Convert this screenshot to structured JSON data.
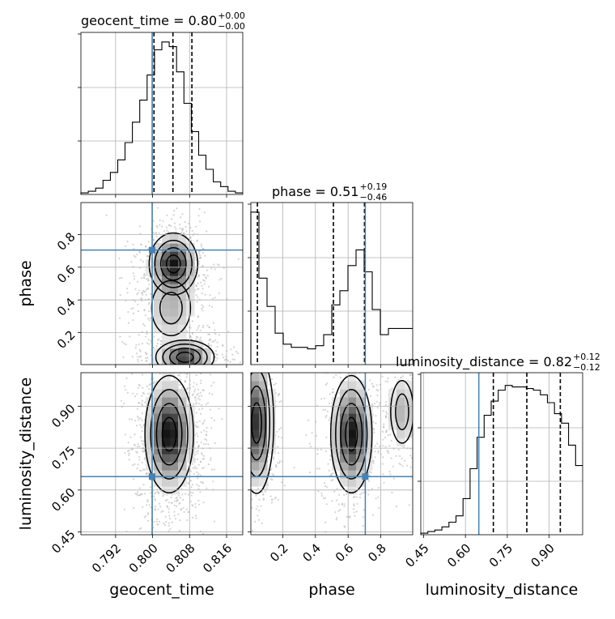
{
  "chart_data": {
    "type": "corner",
    "parameters": [
      "geocent_time",
      "phase",
      "luminosity_distance"
    ],
    "axis_labels": [
      "geocent_time",
      "phase",
      "luminosity_distance"
    ],
    "ranges": [
      [
        0.7845,
        0.8195
      ],
      [
        0.005,
        0.995
      ],
      [
        0.44,
        1.02
      ]
    ],
    "ticks": {
      "geocent_time": [
        0.792,
        0.8,
        0.808,
        0.816
      ],
      "phase": [
        0.2,
        0.4,
        0.6,
        0.8
      ],
      "luminosity_distance": [
        0.45,
        0.6,
        0.75,
        0.9
      ]
    },
    "tick_labels": {
      "geocent_time": [
        "0.792",
        "0.800",
        "0.808",
        "0.816"
      ],
      "phase": [
        "0.2",
        "0.4",
        "0.6",
        "0.8"
      ],
      "luminosity_distance": [
        "0.45",
        "0.60",
        "0.75",
        "0.90"
      ]
    },
    "titles": [
      {
        "param": "geocent_time",
        "name": "geocent_time",
        "value": "0.80",
        "plus": "+0.00",
        "minus": "−0.00"
      },
      {
        "param": "phase",
        "name": "phase",
        "value": "0.51",
        "plus": "+0.19",
        "minus": "−0.46"
      },
      {
        "param": "luminosity_distance",
        "name": "luminosity_distance",
        "value": "0.82",
        "plus": "+0.12",
        "minus": "−0.12"
      }
    ],
    "truths": {
      "geocent_time": 0.7999,
      "phase": 0.705,
      "luminosity_distance": 0.648
    },
    "quantiles": {
      "geocent_time": [
        0.8003,
        0.8044,
        0.8085
      ],
      "phase": [
        0.045,
        0.51,
        0.7
      ],
      "luminosity_distance": [
        0.7,
        0.82,
        0.94
      ]
    },
    "histograms": {
      "geocent_time": {
        "range": [
          0.7845,
          0.8195
        ],
        "values": [
          0.01,
          0.02,
          0.04,
          0.09,
          0.14,
          0.22,
          0.33,
          0.46,
          0.6,
          0.76,
          0.92,
          0.97,
          0.94,
          0.78,
          0.58,
          0.4,
          0.25,
          0.16,
          0.08,
          0.05,
          0.02,
          0.01
        ]
      },
      "phase": {
        "range": [
          0.005,
          0.995
        ],
        "values": [
          0.97,
          0.55,
          0.37,
          0.2,
          0.13,
          0.11,
          0.11,
          0.1,
          0.12,
          0.19,
          0.38,
          0.47,
          0.63,
          0.73,
          0.59,
          0.35,
          0.19,
          0.23,
          0.23,
          0.23
        ]
      },
      "luminosity_distance": {
        "range": [
          0.44,
          1.02
        ],
        "values": [
          0.01,
          0.02,
          0.03,
          0.05,
          0.08,
          0.12,
          0.23,
          0.42,
          0.62,
          0.76,
          0.85,
          0.92,
          0.95,
          0.94,
          0.94,
          0.93,
          0.92,
          0.89,
          0.84,
          0.77,
          0.71,
          0.57,
          0.44
        ]
      }
    },
    "density_peaks": {
      "phase_vs_geocent_time": [
        {
          "x": 0.8045,
          "y": 0.62,
          "sx": 0.0025,
          "sy": 0.09,
          "w": 1.0
        },
        {
          "x": 0.807,
          "y": 0.05,
          "sx": 0.003,
          "sy": 0.05,
          "w": 0.9
        },
        {
          "x": 0.804,
          "y": 0.35,
          "sx": 0.003,
          "sy": 0.12,
          "w": 0.35
        }
      ],
      "luminosity_distance_vs_geocent_time": [
        {
          "x": 0.8036,
          "y": 0.8,
          "sx": 0.0025,
          "sy": 0.1,
          "w": 1.0
        }
      ],
      "luminosity_distance_vs_phase": [
        {
          "x": 0.04,
          "y": 0.84,
          "sx": 0.05,
          "sy": 0.12,
          "w": 0.9
        },
        {
          "x": 0.62,
          "y": 0.8,
          "sx": 0.06,
          "sy": 0.1,
          "w": 1.0
        },
        {
          "x": 0.93,
          "y": 0.88,
          "sx": 0.05,
          "sy": 0.08,
          "w": 0.35
        }
      ]
    },
    "grid": true
  }
}
